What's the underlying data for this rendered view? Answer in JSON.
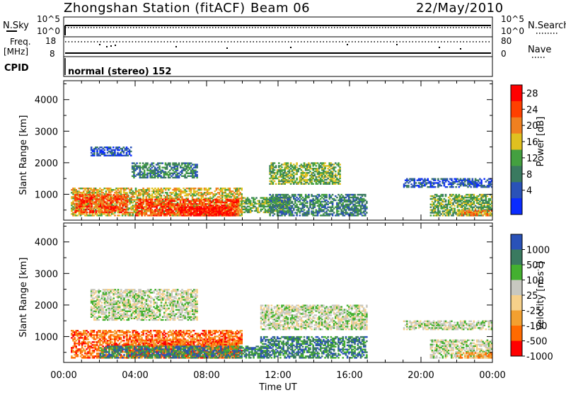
{
  "header": {
    "station_title": "Zhongshan Station (fitACF)",
    "beam": "Beam 06",
    "date": "22/May/2010"
  },
  "strips": {
    "nsky_label": "N.Sky",
    "nsky_top": "10^5",
    "nsky_bottom": "10^0",
    "nsearch_label": "N.Search",
    "nsearch_top": "10^5",
    "nsearch_bottom": "10^0",
    "freq_label_1": "Freq.",
    "freq_label_2": "[MHz]",
    "freq_top": "18",
    "freq_bottom": "8",
    "nave_label": "Nave",
    "nave_top": "80",
    "nave_bottom": "0",
    "cpid_label": "CPID",
    "cpid_value": "normal (stereo) 152"
  },
  "chart_data": [
    {
      "type": "heatmap",
      "panel": "power",
      "ylabel": "Slant Range [km]",
      "y_ticks": [
        "1000",
        "2000",
        "3000",
        "4000"
      ],
      "ylim": [
        180,
        4600
      ],
      "x_ticks": [
        "00:00",
        "04:00",
        "08:00",
        "12:00",
        "16:00",
        "20:00",
        "00:00"
      ],
      "colorbar_label": "Power [dB]",
      "colorbar_ticks": [
        "28",
        "24",
        "20",
        "16",
        "12",
        "8",
        "4"
      ],
      "colors": [
        "#0a2cff",
        "#2a52b8",
        "#3a7a60",
        "#44a040",
        "#e0c020",
        "#f08020",
        "#ff4000",
        "#ff0000"
      ],
      "bands": [
        {
          "x": 0.4,
          "x2": 10.0,
          "y": 300,
          "y2": 1200,
          "c": 4
        },
        {
          "x": 0.6,
          "x2": 3.6,
          "y": 400,
          "y2": 1000,
          "c": 6
        },
        {
          "x": 4.0,
          "x2": 9.8,
          "y": 300,
          "y2": 850,
          "c": 6
        },
        {
          "x": 6.5,
          "x2": 9.5,
          "y": 300,
          "y2": 600,
          "c": 7
        },
        {
          "x": 10.0,
          "x2": 12.8,
          "y": 400,
          "y2": 900,
          "c": 3
        },
        {
          "x": 1.5,
          "x2": 3.8,
          "y": 2200,
          "y2": 2500,
          "c": 1
        },
        {
          "x": 3.8,
          "x2": 7.5,
          "y": 1500,
          "y2": 2000,
          "c": 2
        },
        {
          "x": 11.5,
          "x2": 15.5,
          "y": 1300,
          "y2": 2000,
          "c": 3
        },
        {
          "x": 11.5,
          "x2": 17.0,
          "y": 300,
          "y2": 1000,
          "c": 2
        },
        {
          "x": 19.0,
          "x2": 24.0,
          "y": 1200,
          "y2": 1500,
          "c": 1
        },
        {
          "x": 20.5,
          "x2": 24.0,
          "y": 300,
          "y2": 1000,
          "c": 3
        },
        {
          "x": 22.0,
          "x2": 24.0,
          "y": 300,
          "y2": 500,
          "c": 5
        }
      ]
    },
    {
      "type": "heatmap",
      "panel": "velocity",
      "ylabel": "Slant Range [km]",
      "y_ticks": [
        "1000",
        "2000",
        "3000",
        "4000"
      ],
      "ylim": [
        180,
        4600
      ],
      "x_ticks": [
        "00:00",
        "04:00",
        "08:00",
        "12:00",
        "16:00",
        "20:00",
        "00:00"
      ],
      "xlabel": "Time UT",
      "colorbar_label": "Velocity [m s",
      "colorbar_unit_sup": "-1",
      "colorbar_unit_close": "]",
      "colorbar_ticks": [
        "1000",
        "500",
        "100",
        "25",
        "-25",
        "-100",
        "-500",
        "-1000"
      ],
      "colors": [
        "#ff0000",
        "#ff6a00",
        "#f3a030",
        "#f6d08a",
        "#c8c8c0",
        "#44b030",
        "#3a7a60",
        "#2a52b8"
      ],
      "bands": [
        {
          "x": 0.4,
          "x2": 10.0,
          "y": 300,
          "y2": 1200,
          "c": 1
        },
        {
          "x": 3.5,
          "x2": 9.8,
          "y": 300,
          "y2": 900,
          "c": 1
        },
        {
          "x": 2.0,
          "x2": 11.5,
          "y": 300,
          "y2": 700,
          "c": 6
        },
        {
          "x": 1.5,
          "x2": 7.5,
          "y": 1500,
          "y2": 2500,
          "c": 4
        },
        {
          "x": 11.0,
          "x2": 17.0,
          "y": 1200,
          "y2": 2000,
          "c": 4
        },
        {
          "x": 11.0,
          "x2": 17.0,
          "y": 300,
          "y2": 1000,
          "c": 6
        },
        {
          "x": 19.0,
          "x2": 24.0,
          "y": 1200,
          "y2": 1500,
          "c": 4
        },
        {
          "x": 20.5,
          "x2": 24.0,
          "y": 300,
          "y2": 900,
          "c": 4
        },
        {
          "x": 22.0,
          "x2": 24.0,
          "y": 300,
          "y2": 500,
          "c": 2
        }
      ]
    }
  ]
}
